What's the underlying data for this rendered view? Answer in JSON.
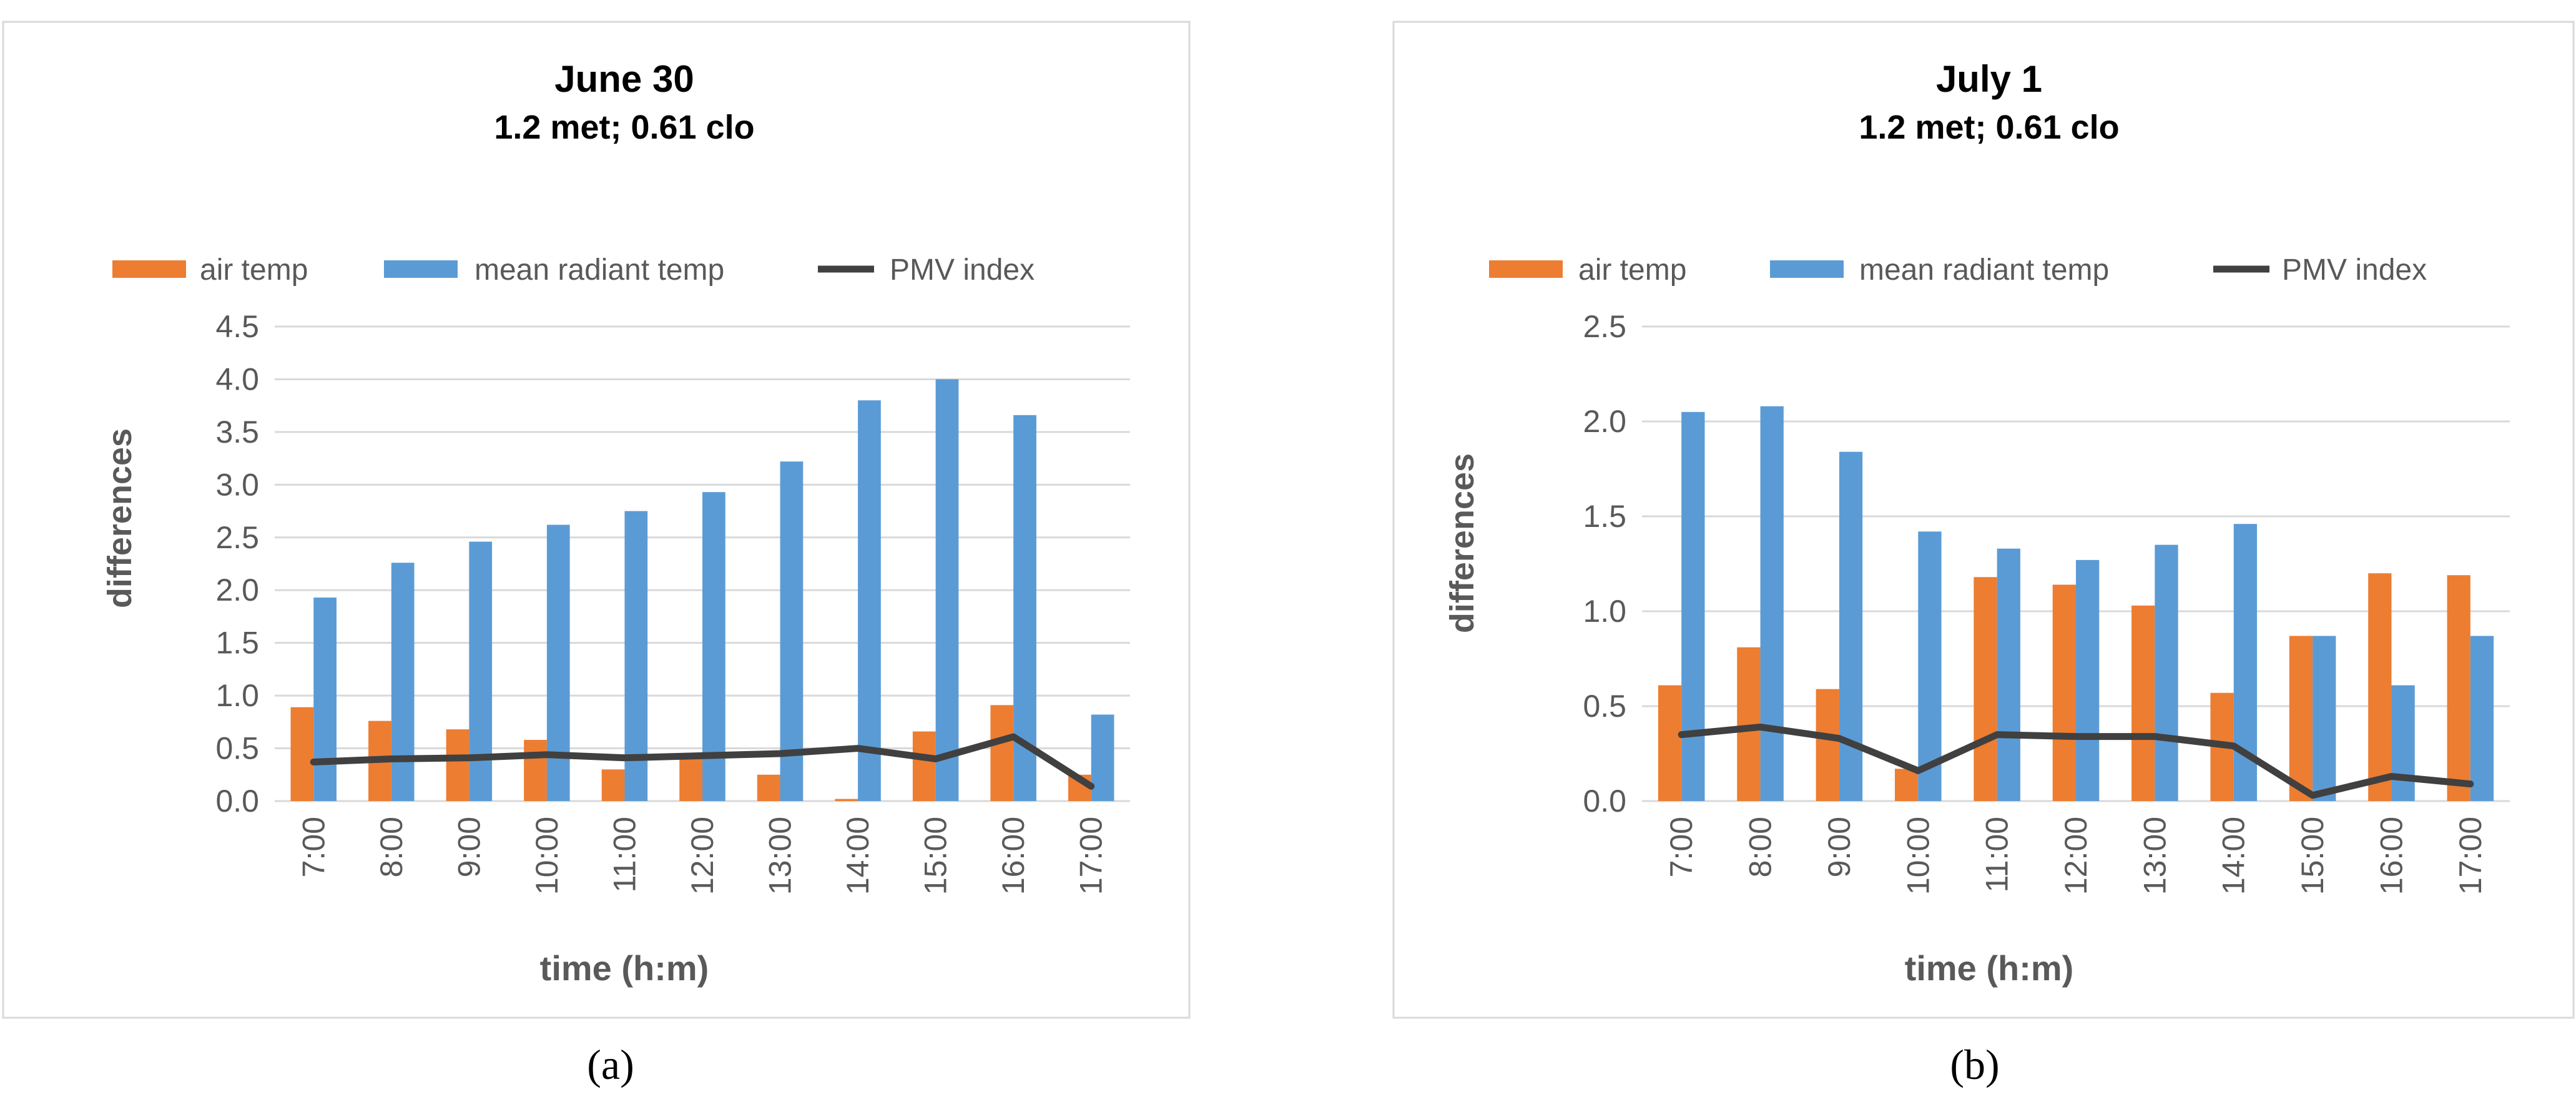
{
  "colors": {
    "air_temp": "#ED7D31",
    "mean_radiant_temp": "#5B9BD5",
    "pmv_index": "#404040",
    "grid": "#D9D9D9",
    "frame": "#D9D9D9",
    "text": "#595959"
  },
  "chart_data": [
    {
      "type": "bar",
      "title": "June 30",
      "subtitle": "1.2 met; 0.61 clo",
      "xlabel": "time (h:m)",
      "ylabel": "differences",
      "ylim": [
        0,
        4.5
      ],
      "ytick_labels": [
        "0.0",
        "0.5",
        "1.0",
        "1.5",
        "2.0",
        "2.5",
        "3.0",
        "3.5",
        "4.0",
        "4.5"
      ],
      "legend_position": "top",
      "categories": [
        "7:00",
        "8:00",
        "9:00",
        "10:00",
        "11:00",
        "12:00",
        "13:00",
        "14:00",
        "15:00",
        "16:00",
        "17:00"
      ],
      "series": [
        {
          "name": "air temp",
          "kind": "bar",
          "values": [
            0.89,
            0.76,
            0.68,
            0.58,
            0.3,
            0.43,
            0.25,
            0.02,
            0.66,
            0.91,
            0.25
          ]
        },
        {
          "name": "mean radiant temp",
          "kind": "bar",
          "values": [
            1.93,
            2.26,
            2.46,
            2.62,
            2.75,
            2.93,
            3.22,
            3.8,
            4.0,
            3.66,
            0.82
          ]
        },
        {
          "name": "PMV index",
          "kind": "line",
          "values": [
            0.37,
            0.4,
            0.41,
            0.44,
            0.41,
            0.43,
            0.45,
            0.5,
            0.4,
            0.61,
            0.14
          ]
        }
      ],
      "caption": "(a)"
    },
    {
      "type": "bar",
      "title": "July 1",
      "subtitle": "1.2 met; 0.61 clo",
      "xlabel": "time (h:m)",
      "ylabel": "differences",
      "ylim": [
        0,
        2.5
      ],
      "ytick_labels": [
        "0.0",
        "0.5",
        "1.0",
        "1.5",
        "2.0",
        "2.5"
      ],
      "legend_position": "top",
      "categories": [
        "7:00",
        "8:00",
        "9:00",
        "10:00",
        "11:00",
        "12:00",
        "13:00",
        "14:00",
        "15:00",
        "16:00",
        "17:00"
      ],
      "series": [
        {
          "name": "air temp",
          "kind": "bar",
          "values": [
            0.61,
            0.81,
            0.59,
            0.17,
            1.18,
            1.14,
            1.03,
            0.57,
            0.87,
            1.2,
            1.19
          ]
        },
        {
          "name": "mean radiant temp",
          "kind": "bar",
          "values": [
            2.05,
            2.08,
            1.84,
            1.42,
            1.33,
            1.27,
            1.35,
            1.46,
            0.87,
            0.61,
            0.87
          ]
        },
        {
          "name": "PMV index",
          "kind": "line",
          "values": [
            0.35,
            0.39,
            0.33,
            0.16,
            0.35,
            0.34,
            0.34,
            0.29,
            0.03,
            0.13,
            0.09
          ]
        }
      ],
      "caption": "(b)"
    }
  ]
}
